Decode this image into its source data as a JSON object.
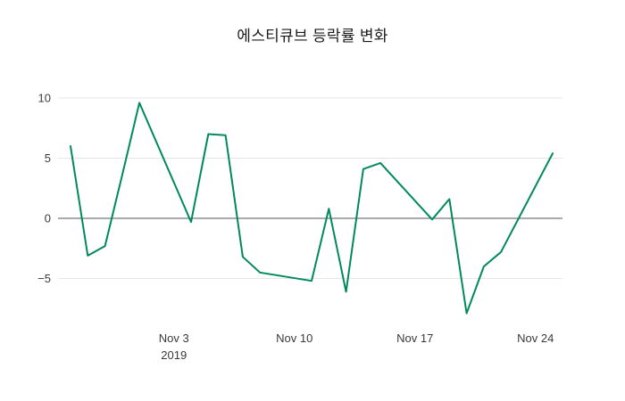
{
  "title": "에스티큐브 등락률 변화",
  "colors": {
    "line": "#008a5c",
    "grid": "#e6e6e6",
    "zero_line": "#555555",
    "tick_label": "#3a3a3a",
    "title": "#1a1a1a",
    "background": "#ffffff"
  },
  "chart_data": {
    "type": "line",
    "title": "에스티큐브 등락률 변화",
    "xlabel": "",
    "ylabel": "",
    "grid": "horizontal",
    "legend": "none",
    "ylim": [
      -9,
      11.1
    ],
    "x": [
      "2019-10-28",
      "2019-10-29",
      "2019-10-30",
      "2019-10-31",
      "2019-11-01",
      "2019-11-04",
      "2019-11-05",
      "2019-11-06",
      "2019-11-07",
      "2019-11-08",
      "2019-11-11",
      "2019-11-12",
      "2019-11-13",
      "2019-11-14",
      "2019-11-15",
      "2019-11-18",
      "2019-11-19",
      "2019-11-20",
      "2019-11-21",
      "2019-11-22",
      "2019-11-25"
    ],
    "values": [
      6.0,
      -3.1,
      -2.3,
      3.6,
      9.6,
      -0.3,
      7.0,
      6.9,
      -3.2,
      -4.5,
      -5.2,
      0.8,
      -6.1,
      4.1,
      4.6,
      -0.1,
      1.6,
      -7.9,
      -4.0,
      -2.8,
      5.4
    ],
    "y_ticks": [
      {
        "value": -5,
        "label": "−5"
      },
      {
        "value": 0,
        "label": "0"
      },
      {
        "value": 5,
        "label": "5"
      },
      {
        "value": 10,
        "label": "10"
      }
    ],
    "x_ticks": [
      {
        "date": "2019-11-03",
        "label": "Nov 3",
        "sublabel": "2019"
      },
      {
        "date": "2019-11-10",
        "label": "Nov 10",
        "sublabel": ""
      },
      {
        "date": "2019-11-17",
        "label": "Nov 17",
        "sublabel": ""
      },
      {
        "date": "2019-11-24",
        "label": "Nov 24",
        "sublabel": ""
      }
    ]
  }
}
